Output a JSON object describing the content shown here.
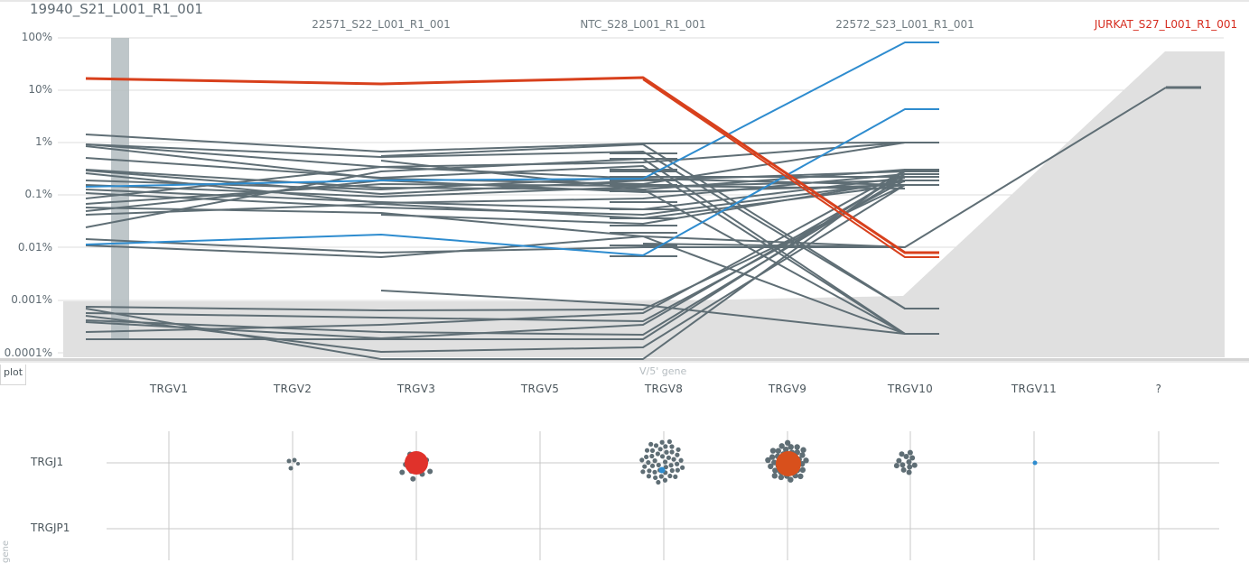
{
  "graph": {
    "title": "19940_S21_L001_R1_001",
    "samples": [
      {
        "name": "22571_S22_L001_R1_001",
        "focus": false
      },
      {
        "name": "NTC_S28_L001_R1_001",
        "focus": false
      },
      {
        "name": "22572_S23_L001_R1_001",
        "focus": false
      },
      {
        "name": "JURKAT_S27_L001_R1_001",
        "focus": true
      }
    ],
    "y_ticks": [
      "100%",
      "10%",
      "1%",
      "0.1%",
      "0.01%",
      "0.001%",
      "0.0001%"
    ],
    "colors": {
      "line": "#5f6e75",
      "blue": "#2e8ccf",
      "red": "#d8401c",
      "fill": "#e0e0e0",
      "selection": "#b3bcbf"
    }
  },
  "plot": {
    "tab_label": "plot",
    "x_axis_title": "V/5' gene",
    "y_axis_title": "gene",
    "v_genes": [
      "TRGV1",
      "TRGV2",
      "TRGV3",
      "TRGV5",
      "TRGV8",
      "TRGV9",
      "TRGV10",
      "TRGV11",
      "?"
    ],
    "j_genes": [
      "TRGJ1",
      "TRGJP1"
    ]
  }
}
